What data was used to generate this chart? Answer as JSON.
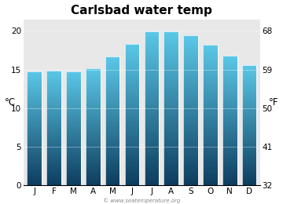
{
  "title": "Carlsbad water temp",
  "months": [
    "J",
    "F",
    "M",
    "A",
    "M",
    "J",
    "J",
    "A",
    "S",
    "O",
    "N",
    "D"
  ],
  "values_c": [
    14.8,
    14.9,
    14.8,
    15.2,
    16.7,
    18.3,
    19.9,
    19.9,
    19.4,
    18.2,
    16.8,
    15.6
  ],
  "ylabel_left": "°C",
  "ylabel_right": "°F",
  "yticks_c": [
    0,
    5,
    10,
    15,
    20
  ],
  "yticks_f": [
    32,
    41,
    50,
    59,
    68
  ],
  "ylim_c": [
    0,
    21.5
  ],
  "bar_color_top": "#5bc8e8",
  "bar_color_bottom": "#0d3d5e",
  "bg_color": "#e8e8e8",
  "fig_bg_color": "#ffffff",
  "watermark": "© www.seatemperature.org",
  "title_fontsize": 11,
  "tick_fontsize": 7.5
}
